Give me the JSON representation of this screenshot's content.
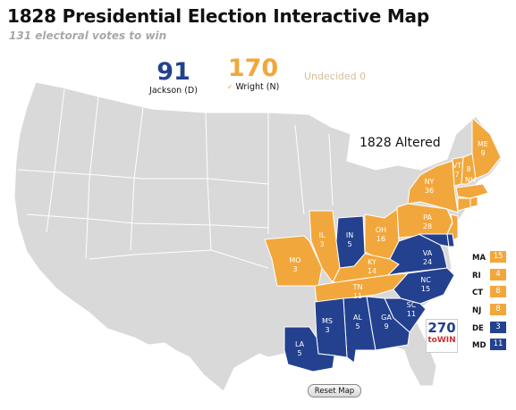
{
  "header": {
    "title": "1828 Presidential Election Interactive Map",
    "subtitle": "131 electoral votes to win"
  },
  "tally": {
    "jackson": {
      "votes": "91",
      "label": "Jackson (D)"
    },
    "wright": {
      "votes": "170",
      "label": "Wright (N)",
      "check": "✓"
    },
    "undecided": "Undecided 0"
  },
  "annotation": "1828 Altered",
  "colors": {
    "jackson": "#23418f",
    "wright": "#f2a73c",
    "no_state": "#d9d9d9"
  },
  "states": [
    {
      "abbr": "ME",
      "ev": "9",
      "party": "wright"
    },
    {
      "abbr": "VT",
      "ev": "7",
      "party": "wright"
    },
    {
      "abbr": "NH",
      "ev": "8",
      "party": "wright"
    },
    {
      "abbr": "NY",
      "ev": "36",
      "party": "wright"
    },
    {
      "abbr": "PA",
      "ev": "28",
      "party": "wright"
    },
    {
      "abbr": "OH",
      "ev": "16",
      "party": "wright"
    },
    {
      "abbr": "IL",
      "ev": "3",
      "party": "wright"
    },
    {
      "abbr": "IN",
      "ev": "5",
      "party": "jackson"
    },
    {
      "abbr": "KY",
      "ev": "14",
      "party": "wright"
    },
    {
      "abbr": "MO",
      "ev": "3",
      "party": "wright"
    },
    {
      "abbr": "TN",
      "ev": "11",
      "party": "wright"
    },
    {
      "abbr": "VA",
      "ev": "24",
      "party": "jackson"
    },
    {
      "abbr": "NC",
      "ev": "15",
      "party": "jackson"
    },
    {
      "abbr": "SC",
      "ev": "11",
      "party": "jackson"
    },
    {
      "abbr": "GA",
      "ev": "9",
      "party": "jackson"
    },
    {
      "abbr": "AL",
      "ev": "5",
      "party": "jackson"
    },
    {
      "abbr": "MS",
      "ev": "3",
      "party": "jackson"
    },
    {
      "abbr": "LA",
      "ev": "5",
      "party": "jackson"
    }
  ],
  "small_states": [
    {
      "abbr": "MA",
      "ev": "15",
      "party": "wright"
    },
    {
      "abbr": "RI",
      "ev": "4",
      "party": "wright"
    },
    {
      "abbr": "CT",
      "ev": "8",
      "party": "wright"
    },
    {
      "abbr": "NJ",
      "ev": "8",
      "party": "wright"
    },
    {
      "abbr": "DE",
      "ev": "3",
      "party": "jackson"
    },
    {
      "abbr": "MD",
      "ev": "11",
      "party": "jackson"
    }
  ],
  "logo": {
    "top": "270",
    "bottom": "toWIN"
  },
  "reset_label": "Reset Map"
}
